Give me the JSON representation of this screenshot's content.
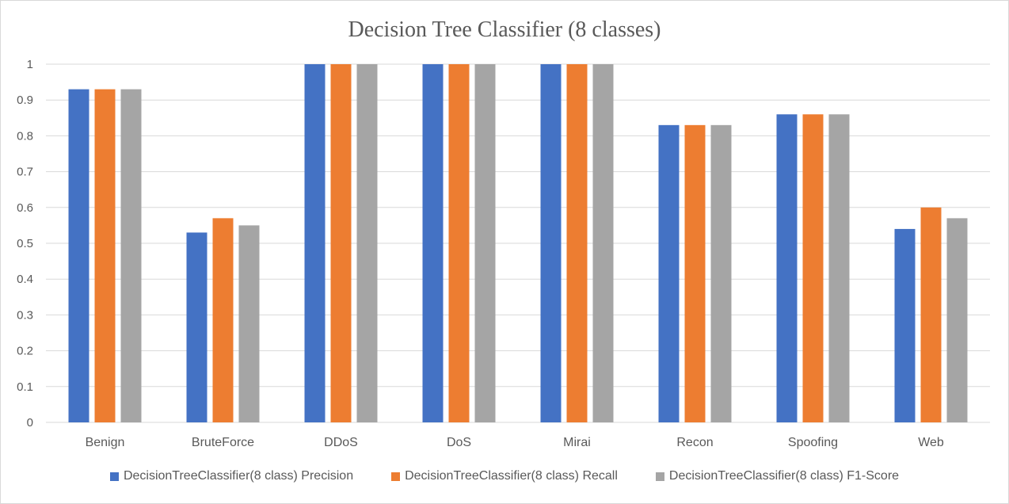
{
  "chart_data": {
    "type": "bar",
    "title": "Decision Tree Classifier (8 classes)",
    "categories": [
      "Benign",
      "BruteForce",
      "DDoS",
      "DoS",
      "Mirai",
      "Recon",
      "Spoofing",
      "Web"
    ],
    "series": [
      {
        "name": "DecisionTreeClassifier(8 class) Precision",
        "color": "#4472C4",
        "values": [
          0.93,
          0.53,
          1,
          1,
          1,
          0.83,
          0.86,
          0.54
        ]
      },
      {
        "name": "DecisionTreeClassifier(8 class) Recall",
        "color": "#ED7D31",
        "values": [
          0.93,
          0.57,
          1,
          1,
          1,
          0.83,
          0.86,
          0.6
        ]
      },
      {
        "name": "DecisionTreeClassifier(8 class) F1-Score",
        "color": "#A5A5A5",
        "values": [
          0.93,
          0.55,
          1,
          1,
          1,
          0.83,
          0.86,
          0.57
        ]
      }
    ],
    "yticks": [
      "0",
      "0.1",
      "0.2",
      "0.3",
      "0.4",
      "0.5",
      "0.6",
      "0.7",
      "0.8",
      "0.9",
      "1"
    ],
    "ylim": [
      0,
      1
    ],
    "grid": true,
    "legend_position": "bottom"
  }
}
